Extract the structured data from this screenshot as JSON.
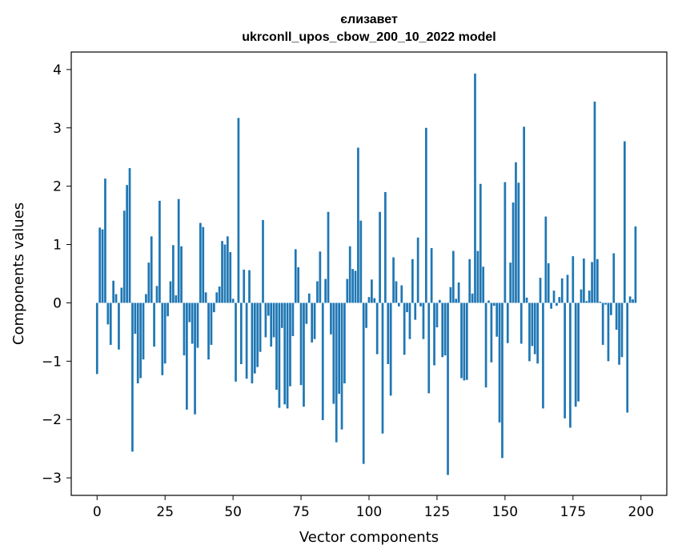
{
  "chart_data": {
    "type": "bar",
    "title": "єлизавет",
    "subtitle": "ukrconll_upos_cbow_200_10_2022 model",
    "xlabel": "Vector components",
    "ylabel": "Components values",
    "xlim": [
      -9.5,
      209.5
    ],
    "ylim": [
      -3.3,
      4.3
    ],
    "xticks": [
      0,
      25,
      50,
      75,
      100,
      125,
      150,
      175,
      200
    ],
    "yticks": [
      -3,
      -2,
      -1,
      0,
      1,
      2,
      3,
      4
    ],
    "xtick_labels": [
      "0",
      "25",
      "50",
      "75",
      "100",
      "125",
      "150",
      "175",
      "200"
    ],
    "ytick_labels": [
      "−3",
      "−2",
      "−1",
      "0",
      "1",
      "2",
      "3",
      "4"
    ],
    "grid": false,
    "legend": "none",
    "bar_color": "#1f77b4",
    "values": [
      -1.22,
      1.29,
      1.26,
      2.13,
      -0.37,
      -0.72,
      0.38,
      0.15,
      -0.8,
      0.26,
      1.58,
      2.02,
      2.31,
      -2.55,
      -0.53,
      -1.38,
      -1.29,
      -0.97,
      0.15,
      0.69,
      1.14,
      -0.75,
      0.29,
      1.75,
      -1.24,
      -1.04,
      -0.23,
      0.37,
      0.99,
      0.13,
      1.78,
      0.97,
      -0.9,
      -1.83,
      -0.33,
      -0.7,
      -1.91,
      -0.77,
      1.37,
      1.3,
      0.18,
      -0.97,
      -0.72,
      -0.16,
      0.18,
      0.28,
      1.06,
      1.0,
      1.14,
      0.87,
      0.07,
      -1.35,
      3.17,
      -1.05,
      0.57,
      -1.3,
      0.56,
      -1.38,
      -1.21,
      -1.1,
      -0.84,
      1.42,
      -0.59,
      -0.22,
      -0.75,
      -0.59,
      -1.49,
      -1.8,
      -0.43,
      -1.74,
      -1.81,
      -1.43,
      -0.57,
      0.92,
      0.61,
      -1.41,
      -1.78,
      -0.36,
      0.16,
      -0.68,
      -0.62,
      0.37,
      0.88,
      -2.01,
      0.41,
      1.56,
      -0.54,
      -1.73,
      -2.39,
      -1.56,
      -2.17,
      -1.38,
      0.41,
      0.97,
      0.58,
      0.55,
      2.66,
      1.41,
      -2.76,
      -0.43,
      0.1,
      0.4,
      0.08,
      -0.88,
      1.56,
      -2.24,
      1.9,
      -1.05,
      -1.59,
      0.78,
      0.37,
      -0.06,
      0.3,
      -0.89,
      -0.16,
      -0.62,
      0.75,
      -0.29,
      1.12,
      -0.06,
      -0.62,
      3.0,
      -1.55,
      0.94,
      -1.07,
      -0.42,
      0.05,
      -0.93,
      -0.9,
      -2.95,
      0.27,
      0.89,
      0.07,
      0.35,
      -1.29,
      -1.33,
      -1.32,
      0.75,
      0.16,
      3.93,
      0.89,
      2.04,
      0.62,
      -1.45,
      0.04,
      -1.02,
      -0.05,
      -0.58,
      -2.05,
      -2.66,
      2.07,
      -0.69,
      0.69,
      1.72,
      2.41,
      2.06,
      -0.7,
      3.02,
      0.09,
      -1.0,
      -0.74,
      -0.88,
      -1.04,
      0.43,
      -1.81,
      1.48,
      0.68,
      -0.1,
      0.21,
      -0.05,
      0.1,
      0.42,
      -1.98,
      0.48,
      -2.14,
      0.8,
      -1.78,
      -1.69,
      0.23,
      0.76,
      0.03,
      0.21,
      0.7,
      3.45,
      0.75,
      0.02,
      -0.72,
      -0.03,
      -1.0,
      -0.21,
      0.85,
      -0.46,
      -1.06,
      -0.93,
      2.77,
      -1.88,
      0.11,
      0.06,
      1.31
    ]
  }
}
